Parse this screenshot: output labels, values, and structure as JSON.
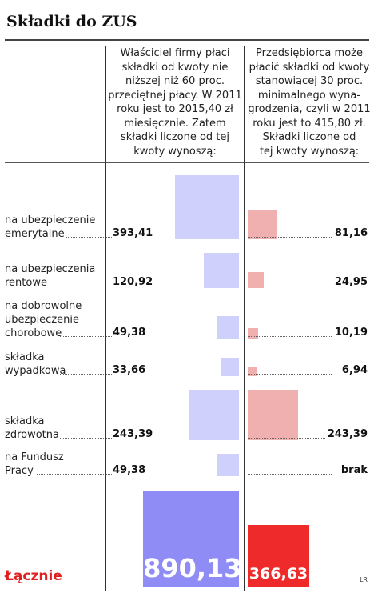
{
  "title": "Składki do ZUS",
  "columns": [
    {
      "name": "owner",
      "header": [
        "Właściciel firmy płaci",
        "składki od kwoty nie",
        "niższej niż 60 proc.",
        "przeciętnej płacy. W 2011",
        "roku jest to 2015,40 zł",
        "miesięcznie. Zatem",
        "składki liczone od tej",
        "kwoty wynoszą:"
      ],
      "color": "#cfd0fb"
    },
    {
      "name": "entrepreneur",
      "header": [
        "Przedsiębiorca może",
        "płacić składki od kwoty",
        "stanowiącej 30 proc.",
        "minimalnego wyna-",
        "grodzenia, czyli w 2011",
        "roku jest to 415,80 zł.",
        "Składki liczone od",
        "tej kwoty wynoszą:"
      ],
      "color": "#f0b0b0"
    }
  ],
  "rows": [
    {
      "label": [
        "na ubezpieczenie",
        "emerytalne"
      ],
      "left_text": "393,41",
      "right_text": "81,16"
    },
    {
      "label": [
        "na ubezpieczenia",
        "rentowe"
      ],
      "left_text": "120,92",
      "right_text": "24,95"
    },
    {
      "label": [
        "na dobrowolne",
        "ubezpieczenie",
        "chorobowe"
      ],
      "left_text": "49,38",
      "right_text": "10,19"
    },
    {
      "label": [
        "składka",
        "wypadkowa"
      ],
      "left_text": "33,66",
      "right_text": "6,94"
    },
    {
      "label": [
        "składka",
        "zdrowotna"
      ],
      "left_text": "243,39",
      "right_text": "243,39"
    },
    {
      "label": [
        "na Fundusz",
        "Pracy"
      ],
      "left_text": "49,38",
      "right_text": "brak"
    }
  ],
  "total": {
    "label": "Łącznie",
    "left_text": "890,13",
    "right_text": "366,63",
    "left_color": "#8f8cf5",
    "right_color": "#ee2a2a"
  },
  "credit": "ŁR",
  "chart_data": {
    "type": "bar",
    "title": "Składki do ZUS",
    "categories": [
      "na ubezpieczenie emerytalne",
      "na ubezpieczenia rentowe",
      "na dobrowolne ubezpieczenie chorobowe",
      "składka wypadkowa",
      "składka zdrowotna",
      "na Fundusz Pracy"
    ],
    "series": [
      {
        "values": [
          393.41,
          120.92,
          49.38,
          33.66,
          243.39,
          49.38
        ]
      },
      {
        "values": [
          81.16,
          24.95,
          10.19,
          6.94,
          243.39,
          0
        ]
      }
    ],
    "totals": [
      890.13,
      366.63
    ]
  }
}
